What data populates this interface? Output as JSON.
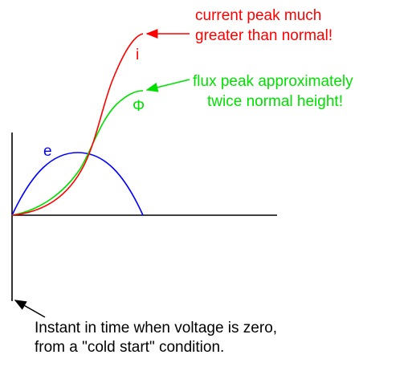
{
  "labels": {
    "voltage": "e",
    "current": "i",
    "flux": "Φ"
  },
  "annotations": {
    "current": [
      "current peak much",
      "greater than normal!"
    ],
    "flux": [
      "flux peak approximately",
      "twice normal height!"
    ],
    "instant": [
      "Instant in time when voltage is zero,",
      "from a \"cold start\" condition."
    ]
  }
}
